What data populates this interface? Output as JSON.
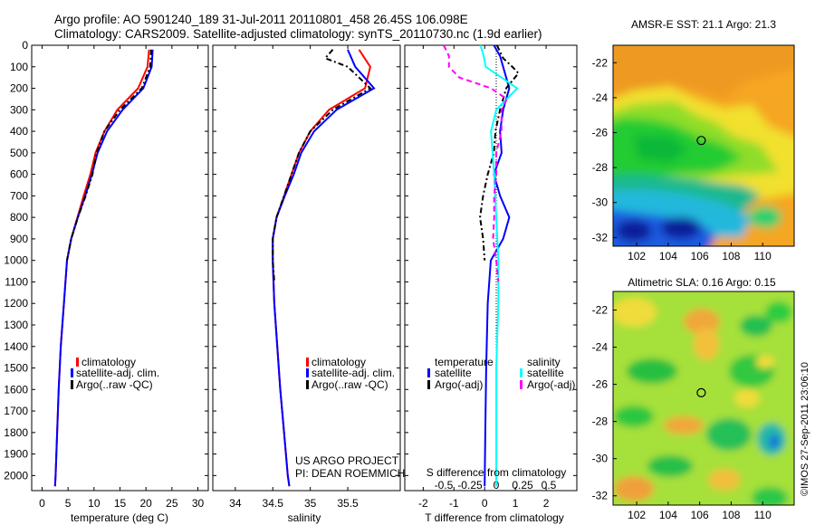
{
  "header": {
    "line1": "Argo profile: AO 5901240_189 31-Jul-2011 20110801_458 26.45S 106.098E",
    "line2": "Climatology: CARS2009. Satellite-adjusted climatology: synTS_20110730.nc (1.9d earlier)"
  },
  "depth_ticks": [
    "0",
    "100",
    "200",
    "300",
    "400",
    "500",
    "600",
    "700",
    "800",
    "900",
    "1000",
    "1100",
    "1200",
    "1300",
    "1400",
    "1500",
    "1600",
    "1700",
    "1800",
    "1900",
    "2000"
  ],
  "colors": {
    "climatology": "#ff0000",
    "satellite": "#0000ff",
    "argo": "#000000",
    "satellite_salinity": "#00ffff",
    "argo_salinity": "#ff00ff"
  },
  "chart_data": [
    {
      "type": "line",
      "xlabel": "temperature (deg C)",
      "ylabel": "",
      "xlim": [
        -2,
        32
      ],
      "ylim": [
        2070,
        0
      ],
      "xticks": [
        "0",
        "5",
        "10",
        "15",
        "20",
        "25",
        "30"
      ],
      "legend": [
        "climatology",
        "satellite-adj. clim.",
        "Argo(..raw -QC)"
      ],
      "legend_position": "bottom-center",
      "series": [
        {
          "name": "climatology",
          "depth": [
            20,
            100,
            200,
            300,
            400,
            500,
            600,
            700,
            800,
            900,
            1000,
            1200,
            1400,
            1600,
            1800,
            2000,
            2050
          ],
          "values": [
            20.6,
            20.3,
            18.5,
            14.5,
            12.0,
            10.3,
            9.3,
            8.0,
            6.8,
            5.6,
            4.8,
            4.2,
            3.6,
            3.2,
            2.9,
            2.6,
            2.5
          ]
        },
        {
          "name": "satellite-adj. clim.",
          "depth": [
            20,
            100,
            200,
            300,
            400,
            500,
            600,
            700,
            800,
            900,
            1000,
            1200,
            1400,
            1600,
            1800,
            2000,
            2050
          ],
          "values": [
            21.3,
            21.1,
            19.5,
            15.5,
            12.5,
            10.7,
            9.6,
            8.3,
            6.9,
            5.6,
            4.8,
            4.2,
            3.6,
            3.2,
            2.9,
            2.6,
            2.5
          ]
        },
        {
          "name": "Argo(..raw -QC)",
          "depth": [
            20,
            100,
            200,
            300,
            400,
            500,
            600,
            700,
            800,
            900,
            1000
          ],
          "values": [
            21.0,
            20.8,
            19.2,
            15.0,
            12.0,
            10.5,
            9.7,
            8.4,
            6.9,
            5.6,
            4.8
          ]
        }
      ]
    },
    {
      "type": "line",
      "xlabel": "salinity",
      "ylabel": "",
      "xlim": [
        33.7,
        36.2
      ],
      "ylim": [
        2070,
        0
      ],
      "xticks": [
        "34",
        "34.5",
        "35",
        "35.5"
      ],
      "legend": [
        "climatology",
        "satellite-adj. clim.",
        "Argo(..raw -QC)"
      ],
      "legend_position": "bottom-center",
      "annotations": [
        "US ARGO PROJECT",
        "PI: DEAN ROEMMICH"
      ],
      "series": [
        {
          "name": "climatology",
          "depth": [
            20,
            100,
            200,
            300,
            400,
            500,
            600,
            700,
            800,
            900,
            1000,
            1200,
            1400,
            1600,
            1800,
            2000,
            2050
          ],
          "values": [
            35.65,
            35.8,
            35.73,
            35.25,
            35.0,
            34.85,
            34.75,
            34.65,
            34.55,
            34.5,
            34.5,
            34.52,
            34.56,
            34.6,
            34.65,
            34.7,
            34.72
          ]
        },
        {
          "name": "satellite-adj. clim.",
          "depth": [
            20,
            100,
            200,
            300,
            400,
            500,
            600,
            700,
            800,
            900,
            1000,
            1200,
            1400,
            1600,
            1800,
            2000,
            2050
          ],
          "values": [
            35.5,
            35.6,
            35.85,
            35.35,
            35.05,
            34.88,
            34.78,
            34.66,
            34.55,
            34.5,
            34.5,
            34.52,
            34.56,
            34.6,
            34.65,
            34.7,
            34.72
          ]
        },
        {
          "name": "Argo(..raw -QC)",
          "depth": [
            20,
            60,
            100,
            150,
            200,
            300,
            400,
            500,
            600,
            700,
            800,
            900,
            1000,
            1100
          ],
          "values": [
            35.3,
            35.2,
            35.5,
            35.65,
            35.8,
            35.3,
            35.0,
            34.85,
            34.75,
            34.65,
            34.55,
            34.5,
            34.5,
            34.52
          ]
        }
      ]
    },
    {
      "type": "line",
      "xlabel": "T difference from climatology",
      "ylabel": "",
      "xlim": [
        -2.6,
        3.0
      ],
      "ylim": [
        2070,
        0
      ],
      "xticks": [
        "-2",
        "-1",
        "0",
        "1",
        "2"
      ],
      "top_axis_label": "S difference from climatology",
      "top_ticks": [
        "-0.5",
        "-0.25",
        "0",
        "0.25",
        "0.5"
      ],
      "legend_temperature_title": "temperature",
      "legend_salinity_title": "salinity",
      "legend": [
        "satellite",
        "Argo(-adj)",
        "satellite",
        "Argo(-adj)"
      ],
      "legend_position": "bottom",
      "series": [
        {
          "name": "satellite",
          "quantity": "temperature",
          "depth": [
            0,
            50,
            100,
            150,
            200,
            300,
            400,
            500,
            600,
            700,
            800,
            900,
            1000,
            1200,
            1500,
            1800,
            2050
          ],
          "values": [
            0.3,
            0.5,
            0.6,
            0.7,
            0.8,
            0.6,
            0.5,
            0.55,
            0.3,
            0.5,
            0.8,
            0.6,
            0.2,
            0.1,
            0.05,
            0.02,
            0.0
          ]
        },
        {
          "name": "Argo(-adj)",
          "quantity": "temperature",
          "depth": [
            0,
            60,
            100,
            130,
            200,
            300,
            400,
            500,
            600,
            700,
            800,
            900,
            1000
          ],
          "values": [
            0.4,
            0.6,
            0.9,
            1.1,
            0.7,
            0.5,
            0.35,
            0.3,
            0.1,
            -0.05,
            -0.15,
            -0.05,
            0.0
          ]
        },
        {
          "name": "satellite",
          "quantity": "salinity",
          "depth": [
            0,
            50,
            100,
            150,
            200,
            250,
            300,
            400,
            600,
            800,
            1000,
            1200,
            1500,
            1800,
            2050
          ],
          "values": [
            -0.15,
            -0.12,
            -0.1,
            0.05,
            0.2,
            0.1,
            0.0,
            -0.05,
            -0.02,
            0.0,
            0.02,
            0.02,
            0.0,
            0.0,
            0.0
          ]
        },
        {
          "name": "Argo(-adj)",
          "quantity": "salinity",
          "depth": [
            0,
            50,
            100,
            150,
            200,
            250,
            300,
            400,
            500,
            600,
            700,
            800,
            900,
            1000,
            1100
          ],
          "values": [
            -0.5,
            -0.45,
            -0.45,
            -0.35,
            -0.05,
            0.1,
            0.05,
            0.05,
            0.0,
            0.0,
            -0.02,
            -0.02,
            -0.03,
            0.0,
            0.02
          ]
        }
      ]
    },
    {
      "type": "heatmap",
      "title": "AMSR-E SST: 21.1 Argo: 21.3",
      "xlim": [
        100.5,
        112
      ],
      "ylim": [
        -32.5,
        -21
      ],
      "xticks": [
        "102",
        "104",
        "106",
        "108",
        "110"
      ],
      "yticks": [
        "-22",
        "-24",
        "-26",
        "-28",
        "-30",
        "-32"
      ],
      "marker": {
        "lon": 106.1,
        "lat": -26.45
      }
    },
    {
      "type": "heatmap",
      "title": "Altimetric SLA: 0.16 Argo: 0.15",
      "xlim": [
        100.5,
        112
      ],
      "ylim": [
        -32.5,
        -21
      ],
      "xticks": [
        "102",
        "104",
        "106",
        "108",
        "110"
      ],
      "yticks": [
        "-22",
        "-24",
        "-26",
        "-28",
        "-30",
        "-32"
      ],
      "marker": {
        "lon": 106.1,
        "lat": -26.45
      }
    }
  ],
  "footer": {
    "stamp": "©IMOS 27-Sep-2011 23:06:10"
  }
}
